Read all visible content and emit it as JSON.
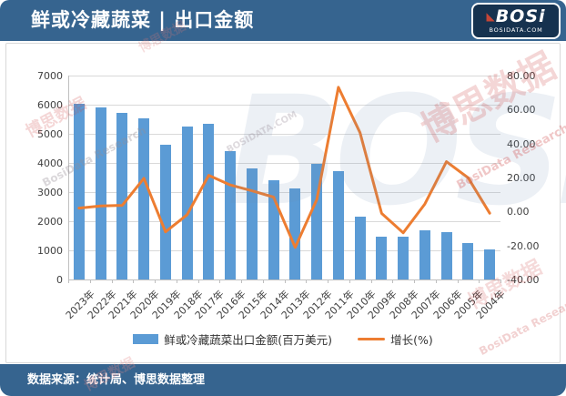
{
  "header": {
    "title": "鲜或冷藏蔬菜 | 出口金额",
    "logo_brand": "BOSi",
    "logo_sub": "BOSIDATA.COM"
  },
  "footer": {
    "source": "数据来源：统计局、博思数据整理"
  },
  "legend": {
    "bar_label": "鲜或冷藏蔬菜出口金额(百万美元)",
    "line_label": "增长(%)"
  },
  "colors": {
    "bar": "#5B9BD5",
    "line": "#ED7D31",
    "banner": "#36648F",
    "gridline": "#D9D9D9",
    "axis_text": "#404040"
  },
  "watermark": {
    "brand": "BOSi",
    "cn": "博思数据",
    "en": "BosiData Research",
    "site": "BOSIDATA.COM"
  },
  "chart_data": {
    "type": "bar",
    "subtype": "combo-bar-line",
    "title": "鲜或冷藏蔬菜 | 出口金额",
    "categories": [
      "2023年",
      "2022年",
      "2021年",
      "2020年",
      "2019年",
      "2018年",
      "2017年",
      "2016年",
      "2015年",
      "2014年",
      "2013年",
      "2012年",
      "2011年",
      "2010年",
      "2009年",
      "2008年",
      "2007年",
      "2006年",
      "2005年",
      "2004年"
    ],
    "series": [
      {
        "name": "鲜或冷藏蔬菜出口金额(百万美元)",
        "type": "bar",
        "axis": "left",
        "values": [
          6030,
          5910,
          5720,
          5520,
          4620,
          5250,
          5350,
          4410,
          3815,
          3400,
          3134,
          3970,
          3710,
          2144,
          1464,
          1481,
          1693,
          1621,
          1254,
          1046
        ]
      },
      {
        "name": "增长(%)",
        "type": "line",
        "axis": "right",
        "values": [
          2.0,
          3.3,
          3.6,
          19.5,
          -12.0,
          -1.9,
          21.3,
          15.6,
          12.2,
          8.5,
          -21.1,
          7.0,
          73.1,
          46.4,
          -1.1,
          -12.5,
          4.4,
          29.3,
          19.9,
          -1.0
        ]
      }
    ],
    "left_axis": {
      "min": 0,
      "max": 7000,
      "step": 1000,
      "tick_labels": [
        "0",
        "1000",
        "2000",
        "3000",
        "4000",
        "5000",
        "6000",
        "7000"
      ]
    },
    "right_axis": {
      "min": -40,
      "max": 80,
      "step": 20,
      "tick_labels": [
        "-40.00",
        "-20.00",
        "0.00",
        "20.00",
        "40.00",
        "60.00",
        "80.00"
      ]
    },
    "grid": true,
    "legend_position": "bottom"
  }
}
